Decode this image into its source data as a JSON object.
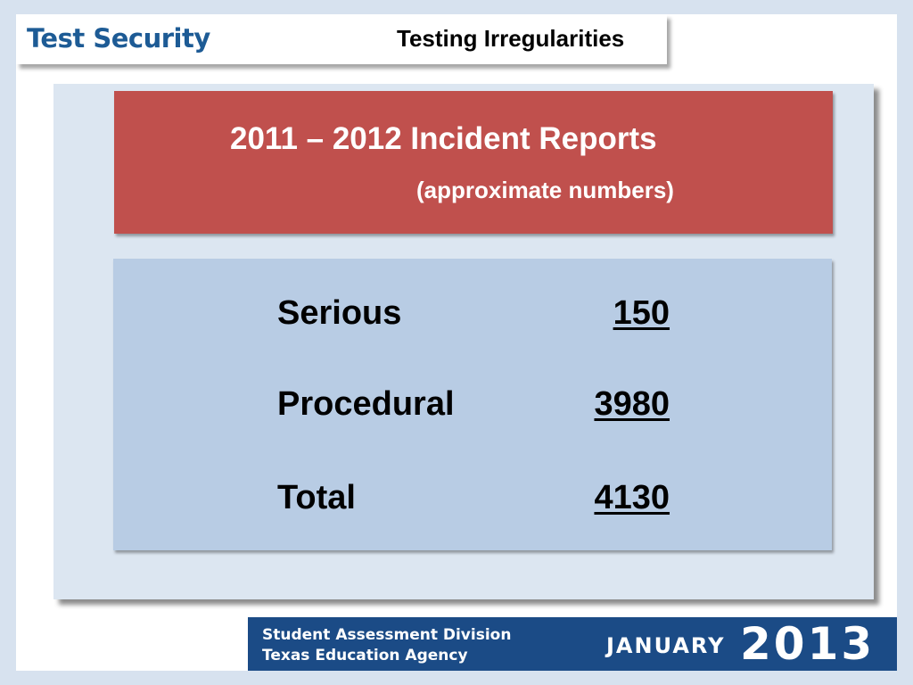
{
  "header": {
    "brand": "Test Security",
    "title": "Testing Irregularities"
  },
  "report": {
    "title": "2011 – 2012 Incident Reports",
    "subtitle": "(approximate numbers)",
    "rows": [
      {
        "label": "Serious",
        "value": "150"
      },
      {
        "label": "Procedural",
        "value": "3980"
      },
      {
        "label": "Total",
        "value": "4130"
      }
    ]
  },
  "footer": {
    "line1": "Student Assessment Division",
    "line2": "Texas Education Agency",
    "month": "JANUARY",
    "year": "2013"
  },
  "colors": {
    "brand_blue": "#1d5b95",
    "header_red": "#c0504d",
    "table_blue": "#b8cce4",
    "footer_navy": "#1b4b86"
  }
}
